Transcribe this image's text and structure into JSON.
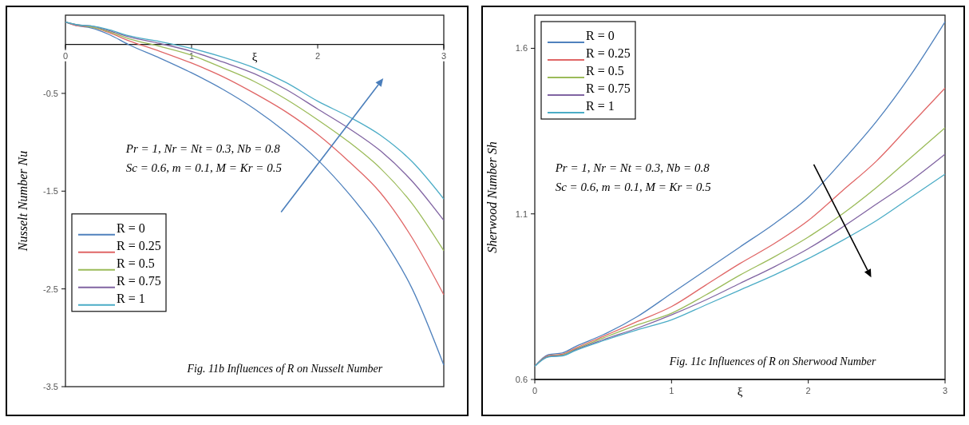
{
  "chart_data": [
    {
      "type": "line",
      "xlabel": "ξ",
      "ylabel": "Nusselt Number Nu",
      "xlim": [
        0,
        3
      ],
      "xticks": [
        0,
        1,
        2,
        3
      ],
      "ylim": [
        -3.5,
        0.3
      ],
      "yticks": [
        -0.5,
        -1.5,
        -2.5,
        -3.5
      ],
      "legend": "left",
      "grid": false,
      "marker": "none",
      "line_style": "solid",
      "x": [
        0,
        0.1,
        0.2,
        0.35,
        0.5,
        0.75,
        1,
        1.25,
        1.5,
        1.75,
        2,
        2.25,
        2.5,
        2.75,
        3
      ],
      "annotations": [
        "Pr = 1, Nr = Nt = 0.3, Nb = 0.8",
        "Sc = 0.6, m = 0.1, M = Kr = 0.5",
        "Fig. 11b Influences of R on Nusselt Number"
      ],
      "series": [
        {
          "name": "R = 0",
          "color": "#4f81bd",
          "values": [
            0.23,
            0.19,
            0.17,
            0.1,
            0.0,
            -0.14,
            -0.29,
            -0.46,
            -0.66,
            -0.9,
            -1.18,
            -1.53,
            -1.95,
            -2.5,
            -3.28
          ]
        },
        {
          "name": "R = 0.25",
          "color": "#e06666",
          "values": [
            0.23,
            0.19,
            0.18,
            0.12,
            0.04,
            -0.07,
            -0.19,
            -0.33,
            -0.5,
            -0.69,
            -0.92,
            -1.2,
            -1.52,
            -1.98,
            -2.56
          ]
        },
        {
          "name": "R = 0.5",
          "color": "#9bbb59",
          "values": [
            0.23,
            0.2,
            0.18,
            0.13,
            0.06,
            -0.02,
            -0.11,
            -0.24,
            -0.38,
            -0.56,
            -0.77,
            -1.0,
            -1.27,
            -1.63,
            -2.11
          ]
        },
        {
          "name": "R = 0.75",
          "color": "#8064a2",
          "values": [
            0.23,
            0.2,
            0.19,
            0.14,
            0.08,
            0.01,
            -0.07,
            -0.18,
            -0.3,
            -0.46,
            -0.66,
            -0.86,
            -1.09,
            -1.4,
            -1.8
          ]
        },
        {
          "name": "R = 1",
          "color": "#4bacc6",
          "values": [
            0.23,
            0.2,
            0.19,
            0.15,
            0.09,
            0.03,
            -0.04,
            -0.13,
            -0.24,
            -0.39,
            -0.58,
            -0.74,
            -0.93,
            -1.2,
            -1.58
          ]
        }
      ]
    },
    {
      "type": "line",
      "xlabel": "ξ",
      "ylabel": "Sherwood Number Sh",
      "xlim": [
        0,
        3
      ],
      "xticks": [
        0,
        1,
        2,
        3
      ],
      "ylim": [
        0.6,
        1.7
      ],
      "yticks": [
        0.6,
        1.1,
        1.6
      ],
      "legend": "top left",
      "grid": false,
      "marker": "none",
      "line_style": "solid",
      "x": [
        0,
        0.1,
        0.2,
        0.3,
        0.5,
        0.75,
        1,
        1.25,
        1.5,
        1.75,
        2,
        2.25,
        2.5,
        2.75,
        3
      ],
      "annotations": [
        "Pr = 1, Nr = Nt = 0.3, Nb = 0.8",
        "Sc = 0.6, m = 0.1, M = Kr = 0.5",
        "Fig. 11c Influences of R on Sherwood Number"
      ],
      "series": [
        {
          "name": "R = 0",
          "color": "#4f81bd",
          "values": [
            0.64,
            0.675,
            0.68,
            0.7,
            0.735,
            0.79,
            0.86,
            0.93,
            1.0,
            1.07,
            1.15,
            1.26,
            1.38,
            1.52,
            1.68
          ]
        },
        {
          "name": "R = 0.25",
          "color": "#e06666",
          "values": [
            0.64,
            0.672,
            0.676,
            0.695,
            0.73,
            0.775,
            0.82,
            0.885,
            0.95,
            1.01,
            1.08,
            1.17,
            1.26,
            1.37,
            1.48
          ]
        },
        {
          "name": "R = 0.5",
          "color": "#9bbb59",
          "values": [
            0.64,
            0.67,
            0.674,
            0.692,
            0.725,
            0.765,
            0.8,
            0.855,
            0.915,
            0.97,
            1.03,
            1.1,
            1.18,
            1.27,
            1.36
          ]
        },
        {
          "name": "R = 0.75",
          "color": "#8064a2",
          "values": [
            0.64,
            0.669,
            0.672,
            0.69,
            0.72,
            0.755,
            0.795,
            0.84,
            0.89,
            0.94,
            0.995,
            1.06,
            1.13,
            1.2,
            1.28
          ]
        },
        {
          "name": "R = 1",
          "color": "#4bacc6",
          "values": [
            0.64,
            0.668,
            0.671,
            0.688,
            0.717,
            0.75,
            0.78,
            0.825,
            0.87,
            0.915,
            0.965,
            1.02,
            1.08,
            1.15,
            1.22
          ]
        }
      ]
    }
  ]
}
